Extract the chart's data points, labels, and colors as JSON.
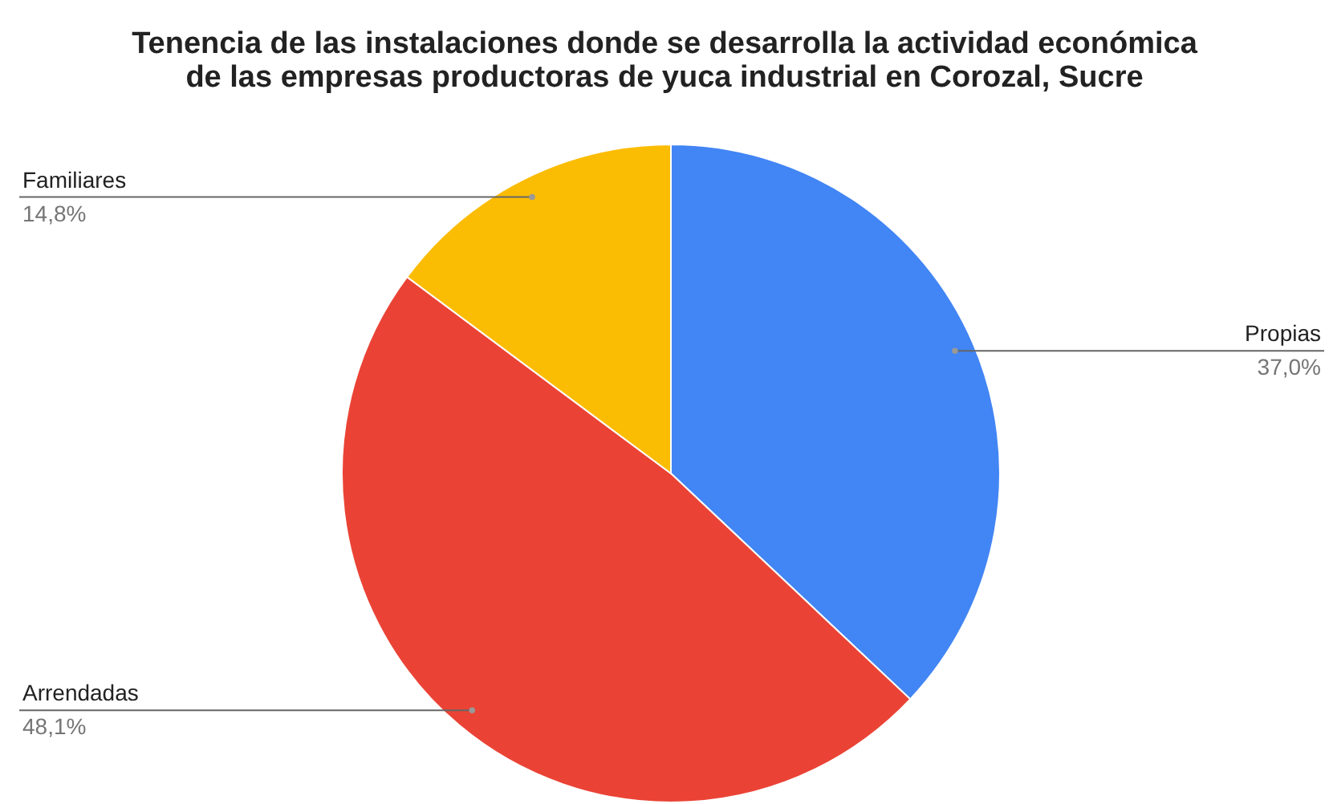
{
  "chart_data": {
    "type": "pie",
    "title": "Tenencia de las instalaciones donde se desarrolla la actividad económica\nde las empresas productoras de yuca industrial en Corozal, Sucre",
    "categories": [
      "Propias",
      "Arrendadas",
      "Familiares"
    ],
    "values": [
      37.0,
      48.1,
      14.8
    ],
    "colors": [
      "#4285f4",
      "#ea4335",
      "#fbbc04"
    ],
    "value_labels": [
      "37,0%",
      "48,1%",
      "14,8%"
    ]
  }
}
